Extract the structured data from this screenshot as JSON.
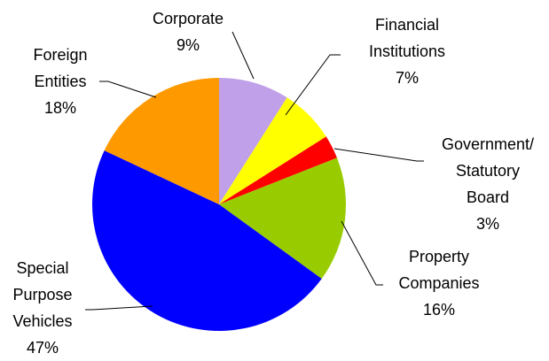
{
  "chart_data": {
    "type": "pie",
    "categories": [
      "Corporate",
      "Financial Institutions",
      "Government/ Statutory Board",
      "Property Companies",
      "Special Purpose Vehicles",
      "Foreign Entities"
    ],
    "values": [
      9,
      7,
      3,
      16,
      47,
      18
    ],
    "value_labels": [
      "9%",
      "7%",
      "3%",
      "16%",
      "47%",
      "18%"
    ],
    "colors": [
      "#c0a0e8",
      "#ffff00",
      "#ff0000",
      "#99cc00",
      "#0000ff",
      "#ff9900"
    ]
  }
}
